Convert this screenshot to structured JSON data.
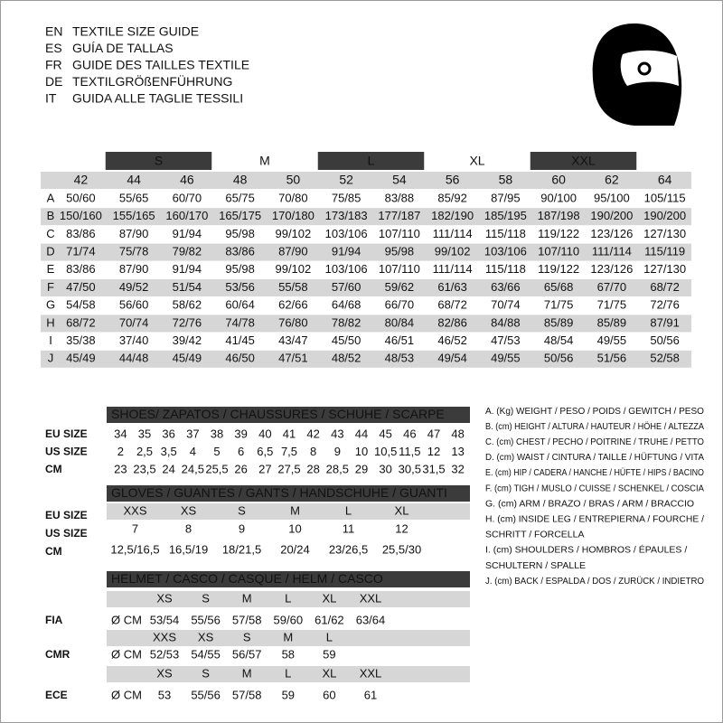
{
  "header": {
    "lines": [
      {
        "code": "EN",
        "text": "TEXTILE SIZE GUIDE"
      },
      {
        "code": "ES",
        "text": "GUÍA DE TALLAS"
      },
      {
        "code": "FR",
        "text": "GUIDE DES TAILLES TEXTILE"
      },
      {
        "code": "DE",
        "text": "TEXTILGRÖßENFÜHRUNG"
      },
      {
        "code": "IT",
        "text": "GUIDA ALLE TAGLIE TESSILI"
      }
    ]
  },
  "size_table": {
    "groups": [
      "S",
      "M",
      "L",
      "XL",
      "XXL"
    ],
    "sizes": [
      "42",
      "44",
      "46",
      "48",
      "50",
      "52",
      "54",
      "56",
      "58",
      "60",
      "62",
      "64"
    ],
    "rows": [
      {
        "label": "A",
        "cells": [
          "50/60",
          "55/65",
          "60/70",
          "65/75",
          "70/80",
          "75/85",
          "83/88",
          "85/92",
          "87/95",
          "90/100",
          "95/100",
          "105/115"
        ]
      },
      {
        "label": "B",
        "cells": [
          "150/160",
          "155/165",
          "160/170",
          "165/175",
          "170/180",
          "173/183",
          "177/187",
          "182/190",
          "185/195",
          "187/198",
          "190/200",
          "190/200"
        ]
      },
      {
        "label": "C",
        "cells": [
          "83/86",
          "87/90",
          "91/94",
          "95/98",
          "99/102",
          "103/106",
          "107/110",
          "111/114",
          "115/118",
          "119/122",
          "123/126",
          "127/130"
        ]
      },
      {
        "label": "D",
        "cells": [
          "71/74",
          "75/78",
          "79/82",
          "83/86",
          "87/90",
          "91/94",
          "95/98",
          "99/102",
          "103/106",
          "107/110",
          "111/114",
          "115/119"
        ]
      },
      {
        "label": "E",
        "cells": [
          "83/86",
          "87/90",
          "91/94",
          "95/98",
          "99/102",
          "103/106",
          "107/110",
          "111/114",
          "115/118",
          "119/122",
          "123/126",
          "127/130"
        ]
      },
      {
        "label": "F",
        "cells": [
          "47/50",
          "49/52",
          "51/54",
          "53/56",
          "55/58",
          "57/60",
          "59/62",
          "61/63",
          "63/66",
          "65/68",
          "67/70",
          "68/72"
        ]
      },
      {
        "label": "G",
        "cells": [
          "54/58",
          "56/60",
          "58/62",
          "60/64",
          "62/66",
          "64/68",
          "66/70",
          "68/72",
          "70/74",
          "71/75",
          "71/75",
          "72/76"
        ]
      },
      {
        "label": "H",
        "cells": [
          "68/72",
          "70/74",
          "72/76",
          "74/78",
          "76/80",
          "78/82",
          "80/84",
          "82/86",
          "84/88",
          "85/89",
          "85/89",
          "87/91"
        ]
      },
      {
        "label": "I",
        "cells": [
          "35/38",
          "37/40",
          "39/42",
          "41/45",
          "43/47",
          "45/50",
          "46/51",
          "46/52",
          "47/53",
          "48/54",
          "49/55",
          "50/56"
        ]
      },
      {
        "label": "J",
        "cells": [
          "45/49",
          "44/48",
          "45/49",
          "46/50",
          "47/51",
          "48/52",
          "48/53",
          "49/54",
          "49/55",
          "50/56",
          "51/56",
          "52/58"
        ]
      }
    ]
  },
  "shoes": {
    "title": "SHOES/ ZAPATOS / CHAUSSURES / SCHUHE / SCARPE",
    "row_labels": [
      "EU SIZE",
      "US SIZE",
      "CM"
    ],
    "rows": [
      [
        "34",
        "35",
        "36",
        "37",
        "38",
        "39",
        "40",
        "41",
        "42",
        "43",
        "44",
        "45",
        "46",
        "47",
        "48"
      ],
      [
        "2",
        "2,5",
        "3,5",
        "4",
        "5",
        "6",
        "6,5",
        "7,5",
        "8",
        "9",
        "10",
        "10,5",
        "11,5",
        "12",
        "13"
      ],
      [
        "23",
        "23,5",
        "24",
        "24,5",
        "25,5",
        "26",
        "27",
        "27,5",
        "28",
        "28,5",
        "29",
        "30",
        "30,5",
        "31,5",
        "32"
      ]
    ]
  },
  "gloves": {
    "title": "GLOVES / GUANTES / GANTS / HANDSCHUHE / GUANTI",
    "row_labels": [
      "EU SIZE",
      "US SIZE",
      "CM"
    ],
    "rows": [
      [
        "XXS",
        "XS",
        "S",
        "M",
        "L",
        "XL"
      ],
      [
        "7",
        "8",
        "9",
        "10",
        "11",
        "12"
      ],
      [
        "12,5/16,5",
        "16,5/19",
        "18/21,5",
        "20/24",
        "23/26,5",
        "25,5/30"
      ]
    ]
  },
  "helmet": {
    "title": "HELMET / CASCO / CASQUE / HELM / CASCO",
    "standards": [
      {
        "label": "FIA",
        "unit": "Ø CM",
        "sizes": [
          "XS",
          "S",
          "M",
          "L",
          "XL",
          "XXL"
        ],
        "values": [
          "53/54",
          "55/56",
          "57/58",
          "59/60",
          "61/62",
          "63/64"
        ]
      },
      {
        "label": "CMR",
        "unit": "Ø CM",
        "sizes": [
          "XXS",
          "XS",
          "S",
          "M",
          "L"
        ],
        "values": [
          "52/53",
          "54/55",
          "56/57",
          "58",
          "59"
        ]
      },
      {
        "label": "ECE",
        "unit": "Ø CM",
        "sizes": [
          "XS",
          "S",
          "M",
          "L",
          "XL",
          "XXL"
        ],
        "values": [
          "53",
          "55/56",
          "57/58",
          "59",
          "60",
          "61"
        ]
      }
    ]
  },
  "legend": {
    "lines": [
      "A. (Kg) WEIGHT / PESO / POIDS / GEWITCH / PESO",
      "B. (cm) HEIGHT / ALTURA / HAUTEUR / HÖHE / ALTEZZA",
      "C. (cm) CHEST / PECHO / POITRINE / TRUHE / PETTO",
      "D. (cm) WAIST / CINTURA / TAILLE / HÜFTUNG / VITA",
      "E. (cm) HIP / CADERA / HANCHE / HÜFTE / HIPS / BACINO",
      "F. (cm) TIGH / MUSLO / CUISSE / SCHENKEL / COSCIA",
      "G. (cm) ARM / BRAZO / BRAS / ARM / BRACCIO",
      "H. (cm) INSIDE LEG / ENTREPIERNA / FOURCHE /",
      "SCHRITT / FORCELLA",
      "I. (cm) SHOULDERS / HOMBROS / ÉPAULES /",
      "SCHULTERN / SPALLE",
      "J. (cm) BACK / ESPALDA / DOS / ZURÜCK / INDIETRO"
    ]
  }
}
